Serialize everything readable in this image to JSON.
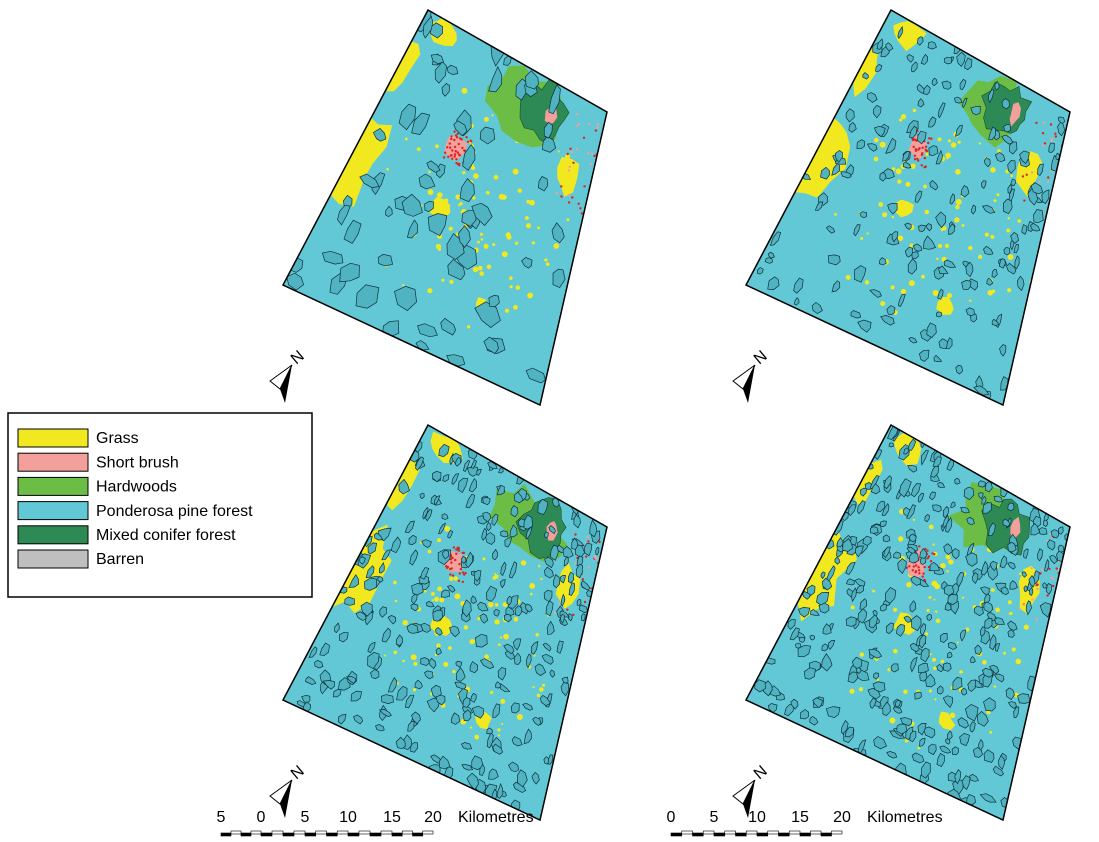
{
  "legend": {
    "items": [
      {
        "label": "Grass",
        "color": "#f2e81f"
      },
      {
        "label": "Short brush",
        "color": "#f3a09c"
      },
      {
        "label": "Hardwoods",
        "color": "#6cbd45"
      },
      {
        "label": "Ponderosa pine forest",
        "color": "#63c8d6"
      },
      {
        "label": "Mixed conifer forest",
        "color": "#2d8a55"
      },
      {
        "label": "Barren",
        "color": "#bfbfbf"
      }
    ]
  },
  "maps": [
    {
      "north": "N"
    },
    {
      "north": "N"
    },
    {
      "north": "N"
    },
    {
      "north": "N"
    }
  ],
  "scale_bars": [
    {
      "labels": [
        "5",
        "0",
        "5",
        "10",
        "15",
        "20"
      ],
      "unit": "Kilometres"
    },
    {
      "labels": [
        "0",
        "5",
        "10",
        "15",
        "20"
      ],
      "unit": "Kilometres"
    }
  ]
}
